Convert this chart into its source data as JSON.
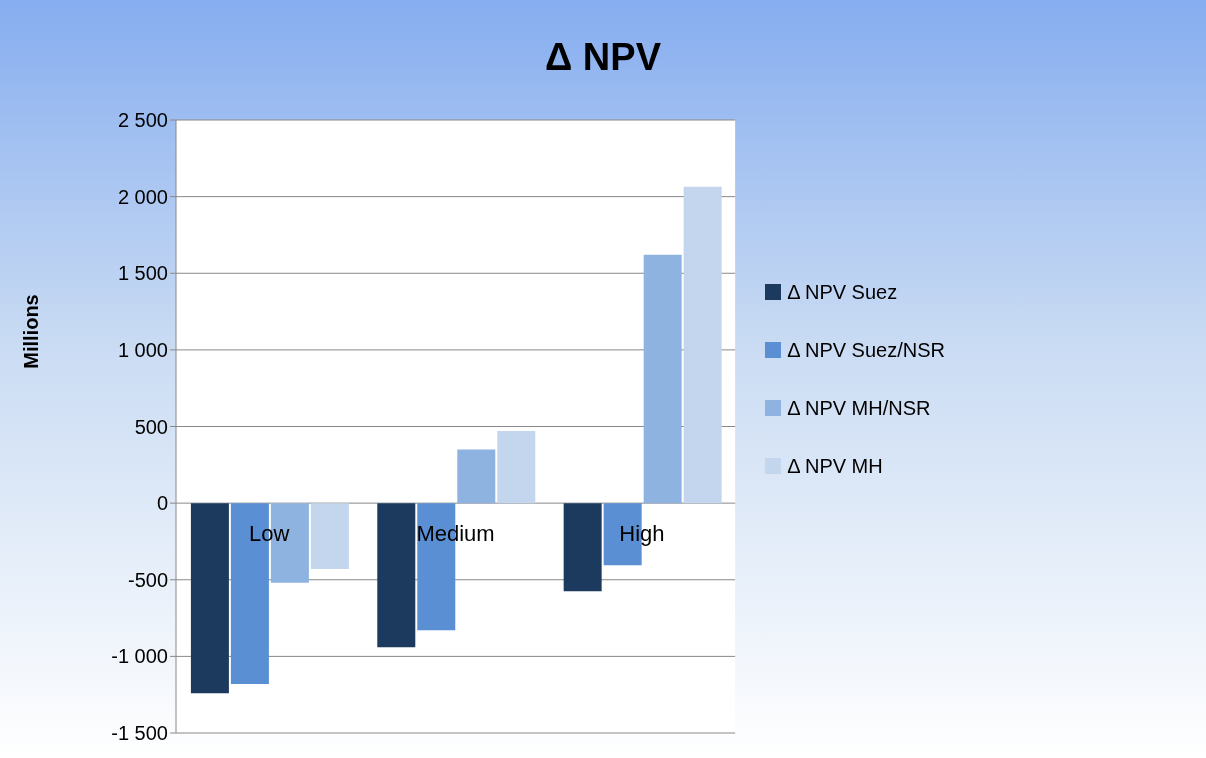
{
  "chart_data": {
    "type": "bar",
    "title": "Δ NPV",
    "ylabel": "Millions",
    "categories": [
      "Low",
      "Medium",
      "High"
    ],
    "series": [
      {
        "name": "Δ NPV Suez",
        "color": "#1b3a5e",
        "values": [
          -1240,
          -940,
          -575
        ]
      },
      {
        "name": "Δ NPV Suez/NSR",
        "color": "#5a8fd4",
        "values": [
          -1180,
          -830,
          -405
        ]
      },
      {
        "name": "Δ NPV MH/NSR",
        "color": "#8fb3e0",
        "values": [
          -520,
          350,
          1620
        ]
      },
      {
        "name": "Δ NPV MH",
        "color": "#c4d6ee",
        "values": [
          -430,
          470,
          2065
        ]
      }
    ],
    "ylim": [
      -1500,
      2500
    ],
    "yticks": [
      {
        "value": -1500,
        "label": "-1 500"
      },
      {
        "value": -1000,
        "label": "-1 000"
      },
      {
        "value": -500,
        "label": "-500"
      },
      0,
      {
        "value": 500,
        "label": "500"
      },
      {
        "value": 1000,
        "label": "1 000"
      },
      {
        "value": 1500,
        "label": "1 500"
      },
      {
        "value": 2000,
        "label": "2 000"
      },
      {
        "value": 2500,
        "label": "2 500"
      }
    ],
    "grid": "y",
    "legend": "right"
  }
}
